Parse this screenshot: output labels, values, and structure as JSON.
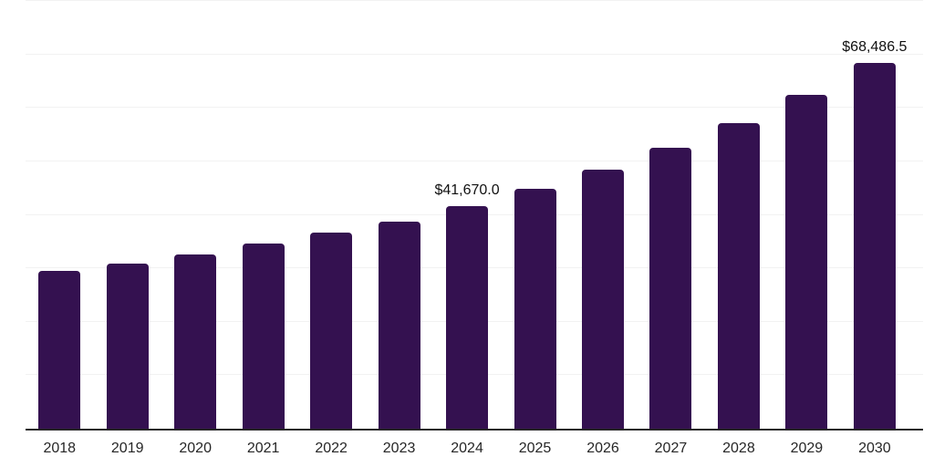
{
  "chart_data": {
    "type": "bar",
    "title": "",
    "xlabel": "",
    "ylabel": "",
    "categories": [
      "2018",
      "2019",
      "2020",
      "2021",
      "2022",
      "2023",
      "2024",
      "2025",
      "2026",
      "2027",
      "2028",
      "2029",
      "2030"
    ],
    "values": [
      29600,
      30900,
      32550,
      34600,
      36600,
      38800,
      41670.0,
      44800,
      48400,
      52600,
      57200,
      62500,
      68486.5
    ],
    "bar_labels": {
      "2024": "$41,670.0",
      "2030": "$68,486.5"
    },
    "ylim": [
      0,
      80000
    ],
    "gridline_values": [
      10000,
      20000,
      30000,
      40000,
      50000,
      60000,
      70000,
      80000
    ],
    "grid": true,
    "legend": "none"
  },
  "colors": {
    "bar": "#341150",
    "axis_line": "#262626",
    "gridline": "#f2f2f2",
    "tick_label": "#262626",
    "data_label": "#111111",
    "background": "#ffffff"
  }
}
